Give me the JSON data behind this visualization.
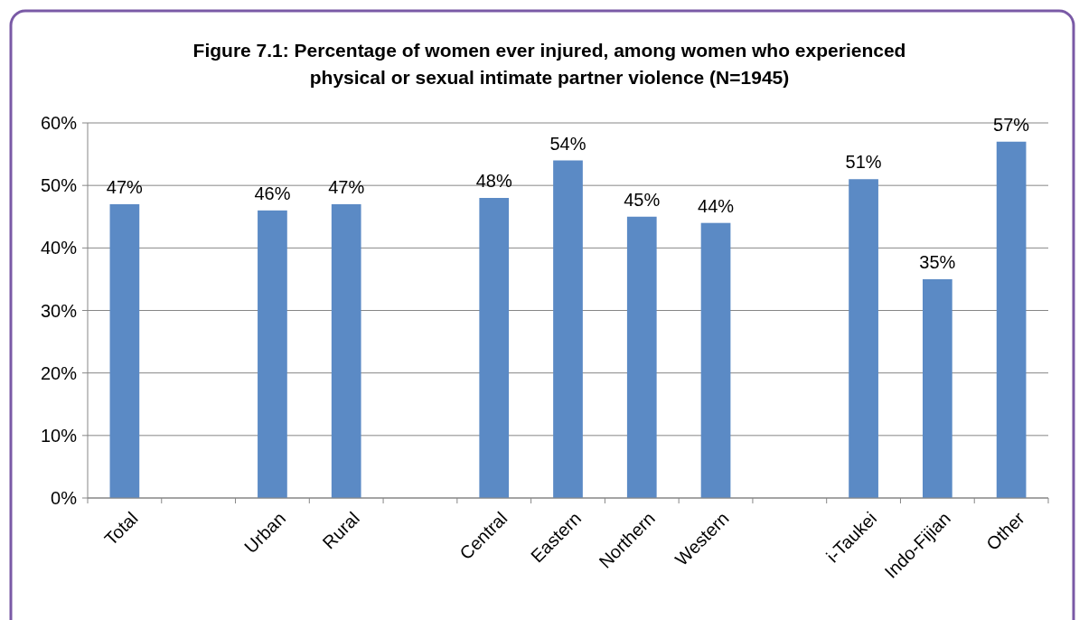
{
  "chart_data": {
    "type": "bar",
    "title": "Figure 7.1: Percentage of women ever injured, among women who experienced physical or sexual intimate partner violence (N=1945)",
    "categories": [
      "Total",
      null,
      "Urban",
      "Rural",
      null,
      "Central",
      "Eastern",
      "Northern",
      "Western",
      null,
      "i-Taukei",
      "Indo-Fijian",
      "Other"
    ],
    "values": [
      47,
      null,
      46,
      47,
      null,
      48,
      54,
      45,
      44,
      null,
      51,
      35,
      57
    ],
    "value_labels": [
      "47%",
      null,
      "46%",
      "47%",
      null,
      "48%",
      "54%",
      "45%",
      "44%",
      null,
      "51%",
      "35%",
      "57%"
    ],
    "color": "#5b8ac5",
    "ylim": [
      0,
      60
    ],
    "yticks": [
      {
        "value": 0,
        "label": "0%"
      },
      {
        "value": 10,
        "label": "10%"
      },
      {
        "value": 20,
        "label": "20%"
      },
      {
        "value": 30,
        "label": "30%"
      },
      {
        "value": 40,
        "label": "40%"
      },
      {
        "value": 50,
        "label": "50%"
      },
      {
        "value": 60,
        "label": "60%"
      }
    ],
    "grid": "y"
  }
}
